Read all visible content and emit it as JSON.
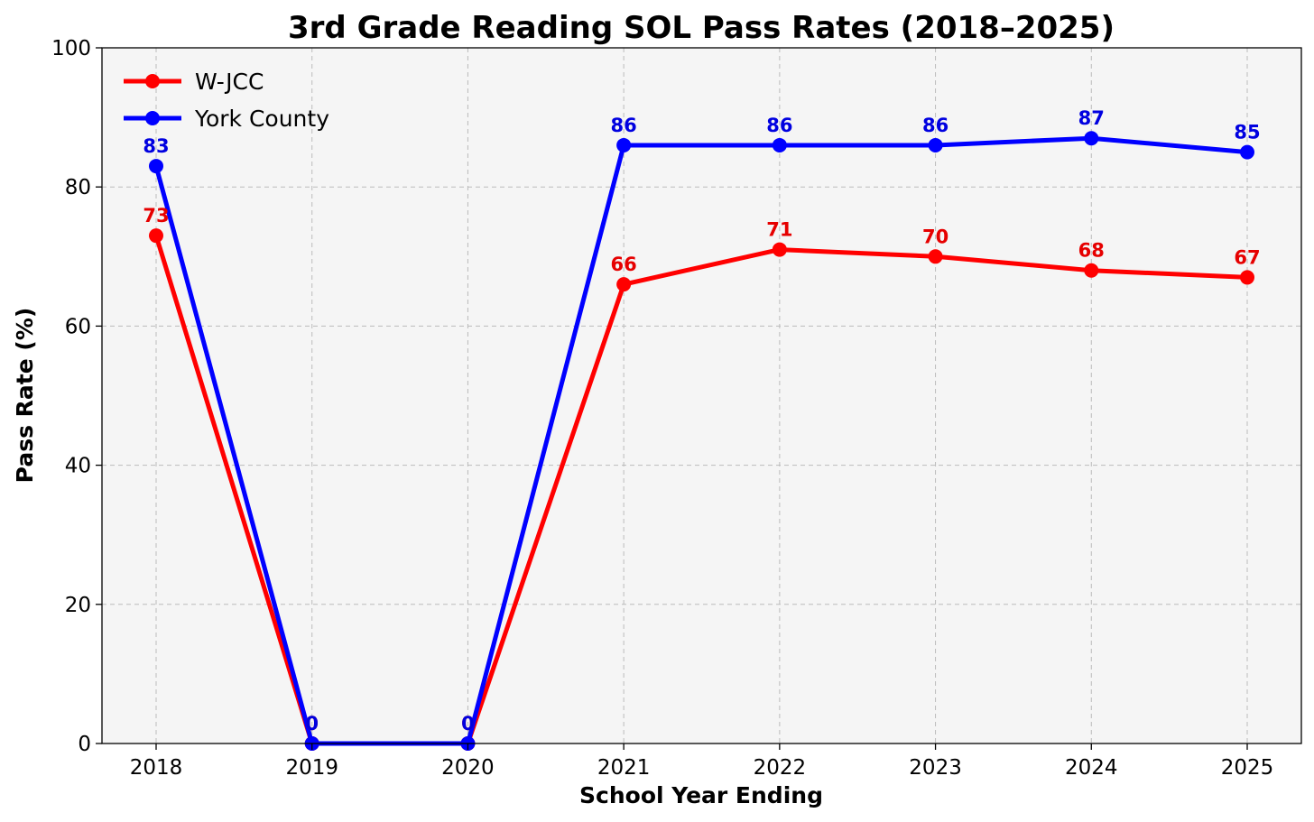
{
  "chart_data": {
    "type": "line",
    "title": "3rd Grade Reading SOL Pass Rates (2018–2025)",
    "xlabel": "School Year Ending",
    "ylabel": "Pass Rate (%)",
    "categories": [
      "2018",
      "2019",
      "2020",
      "2021",
      "2022",
      "2023",
      "2024",
      "2025"
    ],
    "ylim": [
      0,
      100
    ],
    "yticks": [
      0,
      20,
      40,
      60,
      80,
      100
    ],
    "grid": true,
    "legend_position": "top-left",
    "series": [
      {
        "name": "W-JCC",
        "color": "#ff0000",
        "label_color": "#e60000",
        "values": [
          73,
          0,
          0,
          66,
          71,
          70,
          68,
          67
        ]
      },
      {
        "name": "York County",
        "color": "#0000ff",
        "label_color": "#0000e0",
        "values": [
          83,
          0,
          0,
          86,
          86,
          86,
          87,
          85
        ]
      }
    ]
  }
}
